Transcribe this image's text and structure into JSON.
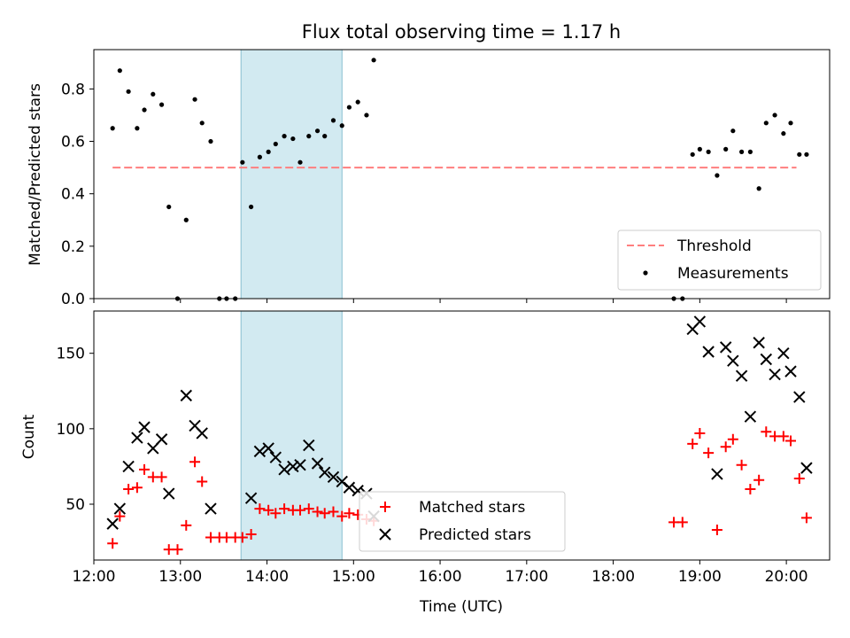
{
  "chart_data": [
    {
      "type": "scatter",
      "title": "Flux total observing time = 1.17 h",
      "ylabel": "Matched/Predicted stars",
      "xlabel": "",
      "xlim": [
        "12:00",
        "20:30"
      ],
      "ylim": [
        0,
        0.95
      ],
      "yticks": [
        "0.0",
        "0.2",
        "0.4",
        "0.6",
        "0.8"
      ],
      "highlight_span": [
        "13:42",
        "14:52"
      ],
      "highlight_color": "#add8e6",
      "grid": false,
      "legend": "lower-right",
      "series": [
        {
          "name": "Threshold",
          "kind": "dashed-line",
          "color": "#ff7f7f",
          "points": [
            [
              "12:13",
              0.5
            ],
            [
              "20:07",
              0.5
            ]
          ]
        },
        {
          "name": "Measurements",
          "kind": "dot",
          "color": "#000000",
          "points": [
            [
              "12:13",
              0.65
            ],
            [
              "12:18",
              0.87
            ],
            [
              "12:24",
              0.79
            ],
            [
              "12:30",
              0.65
            ],
            [
              "12:35",
              0.72
            ],
            [
              "12:41",
              0.78
            ],
            [
              "12:47",
              0.74
            ],
            [
              "12:52",
              0.35
            ],
            [
              "12:58",
              0.0
            ],
            [
              "13:04",
              0.3
            ],
            [
              "13:10",
              0.76
            ],
            [
              "13:15",
              0.67
            ],
            [
              "13:21",
              0.6
            ],
            [
              "13:27",
              0.0
            ],
            [
              "13:32",
              0.0
            ],
            [
              "13:38",
              0.0
            ],
            [
              "13:43",
              0.52
            ],
            [
              "13:49",
              0.35
            ],
            [
              "13:55",
              0.54
            ],
            [
              "14:01",
              0.56
            ],
            [
              "14:06",
              0.59
            ],
            [
              "14:12",
              0.62
            ],
            [
              "14:18",
              0.61
            ],
            [
              "14:23",
              0.52
            ],
            [
              "14:29",
              0.62
            ],
            [
              "14:35",
              0.64
            ],
            [
              "14:40",
              0.62
            ],
            [
              "14:46",
              0.68
            ],
            [
              "14:52",
              0.66
            ],
            [
              "14:57",
              0.73
            ],
            [
              "15:03",
              0.75
            ],
            [
              "15:09",
              0.7
            ],
            [
              "15:14",
              0.91
            ],
            [
              "18:42",
              0.0
            ],
            [
              "18:48",
              0.0
            ],
            [
              "18:55",
              0.55
            ],
            [
              "19:00",
              0.57
            ],
            [
              "19:06",
              0.56
            ],
            [
              "19:12",
              0.47
            ],
            [
              "19:18",
              0.57
            ],
            [
              "19:23",
              0.64
            ],
            [
              "19:29",
              0.56
            ],
            [
              "19:35",
              0.56
            ],
            [
              "19:41",
              0.42
            ],
            [
              "19:46",
              0.67
            ],
            [
              "19:52",
              0.7
            ],
            [
              "19:58",
              0.63
            ],
            [
              "20:03",
              0.67
            ],
            [
              "20:09",
              0.55
            ],
            [
              "20:14",
              0.55
            ]
          ]
        }
      ]
    },
    {
      "type": "scatter",
      "title": "",
      "xlabel": "Time (UTC)",
      "ylabel": "Count",
      "xlim": [
        "12:00",
        "20:30"
      ],
      "ylim": [
        13,
        178
      ],
      "xticks": [
        "12:00",
        "13:00",
        "14:00",
        "15:00",
        "16:00",
        "17:00",
        "18:00",
        "19:00",
        "20:00"
      ],
      "yticks": [
        "50",
        "100",
        "150"
      ],
      "highlight_span": [
        "13:42",
        "14:52"
      ],
      "highlight_color": "#add8e6",
      "grid": false,
      "legend": "lower-center",
      "series": [
        {
          "name": "Matched stars",
          "kind": "plus",
          "color": "#ff0000",
          "points": [
            [
              "12:13",
              24
            ],
            [
              "12:18",
              42
            ],
            [
              "12:24",
              60
            ],
            [
              "12:30",
              61
            ],
            [
              "12:35",
              73
            ],
            [
              "12:41",
              68
            ],
            [
              "12:47",
              68
            ],
            [
              "12:52",
              20
            ],
            [
              "12:58",
              20
            ],
            [
              "13:04",
              36
            ],
            [
              "13:10",
              78
            ],
            [
              "13:15",
              65
            ],
            [
              "13:21",
              28
            ],
            [
              "13:27",
              28
            ],
            [
              "13:32",
              28
            ],
            [
              "13:38",
              28
            ],
            [
              "13:43",
              28
            ],
            [
              "13:49",
              30
            ],
            [
              "13:55",
              47
            ],
            [
              "14:01",
              46
            ],
            [
              "14:06",
              44
            ],
            [
              "14:12",
              47
            ],
            [
              "14:18",
              46
            ],
            [
              "14:23",
              46
            ],
            [
              "14:29",
              47
            ],
            [
              "14:35",
              45
            ],
            [
              "14:40",
              44
            ],
            [
              "14:46",
              45
            ],
            [
              "14:52",
              42
            ],
            [
              "14:57",
              44
            ],
            [
              "15:03",
              43
            ],
            [
              "15:09",
              40
            ],
            [
              "15:14",
              39
            ],
            [
              "18:42",
              38
            ],
            [
              "18:48",
              38
            ],
            [
              "18:55",
              90
            ],
            [
              "19:00",
              97
            ],
            [
              "19:06",
              84
            ],
            [
              "19:12",
              33
            ],
            [
              "19:18",
              88
            ],
            [
              "19:23",
              93
            ],
            [
              "19:29",
              76
            ],
            [
              "19:35",
              60
            ],
            [
              "19:41",
              66
            ],
            [
              "19:46",
              98
            ],
            [
              "19:52",
              95
            ],
            [
              "19:58",
              95
            ],
            [
              "20:03",
              92
            ],
            [
              "20:09",
              67
            ],
            [
              "20:14",
              41
            ]
          ]
        },
        {
          "name": "Predicted stars",
          "kind": "x",
          "color": "#000000",
          "points": [
            [
              "12:13",
              37
            ],
            [
              "12:18",
              47
            ],
            [
              "12:24",
              75
            ],
            [
              "12:30",
              94
            ],
            [
              "12:35",
              101
            ],
            [
              "12:41",
              87
            ],
            [
              "12:47",
              93
            ],
            [
              "12:52",
              57
            ],
            [
              "13:04",
              122
            ],
            [
              "13:10",
              102
            ],
            [
              "13:15",
              97
            ],
            [
              "13:21",
              47
            ],
            [
              "13:49",
              54
            ],
            [
              "13:55",
              85
            ],
            [
              "14:01",
              87
            ],
            [
              "14:06",
              81
            ],
            [
              "14:12",
              73
            ],
            [
              "14:18",
              75
            ],
            [
              "14:23",
              76
            ],
            [
              "14:29",
              89
            ],
            [
              "14:35",
              77
            ],
            [
              "14:40",
              71
            ],
            [
              "14:46",
              68
            ],
            [
              "14:52",
              65
            ],
            [
              "14:57",
              61
            ],
            [
              "15:03",
              59
            ],
            [
              "15:09",
              57
            ],
            [
              "15:14",
              42
            ],
            [
              "18:55",
              166
            ],
            [
              "19:00",
              171
            ],
            [
              "19:06",
              151
            ],
            [
              "19:12",
              70
            ],
            [
              "19:18",
              154
            ],
            [
              "19:23",
              145
            ],
            [
              "19:29",
              135
            ],
            [
              "19:35",
              108
            ],
            [
              "19:41",
              157
            ],
            [
              "19:46",
              146
            ],
            [
              "19:52",
              136
            ],
            [
              "19:58",
              150
            ],
            [
              "20:03",
              138
            ],
            [
              "20:09",
              121
            ],
            [
              "20:14",
              74
            ]
          ]
        }
      ]
    }
  ]
}
